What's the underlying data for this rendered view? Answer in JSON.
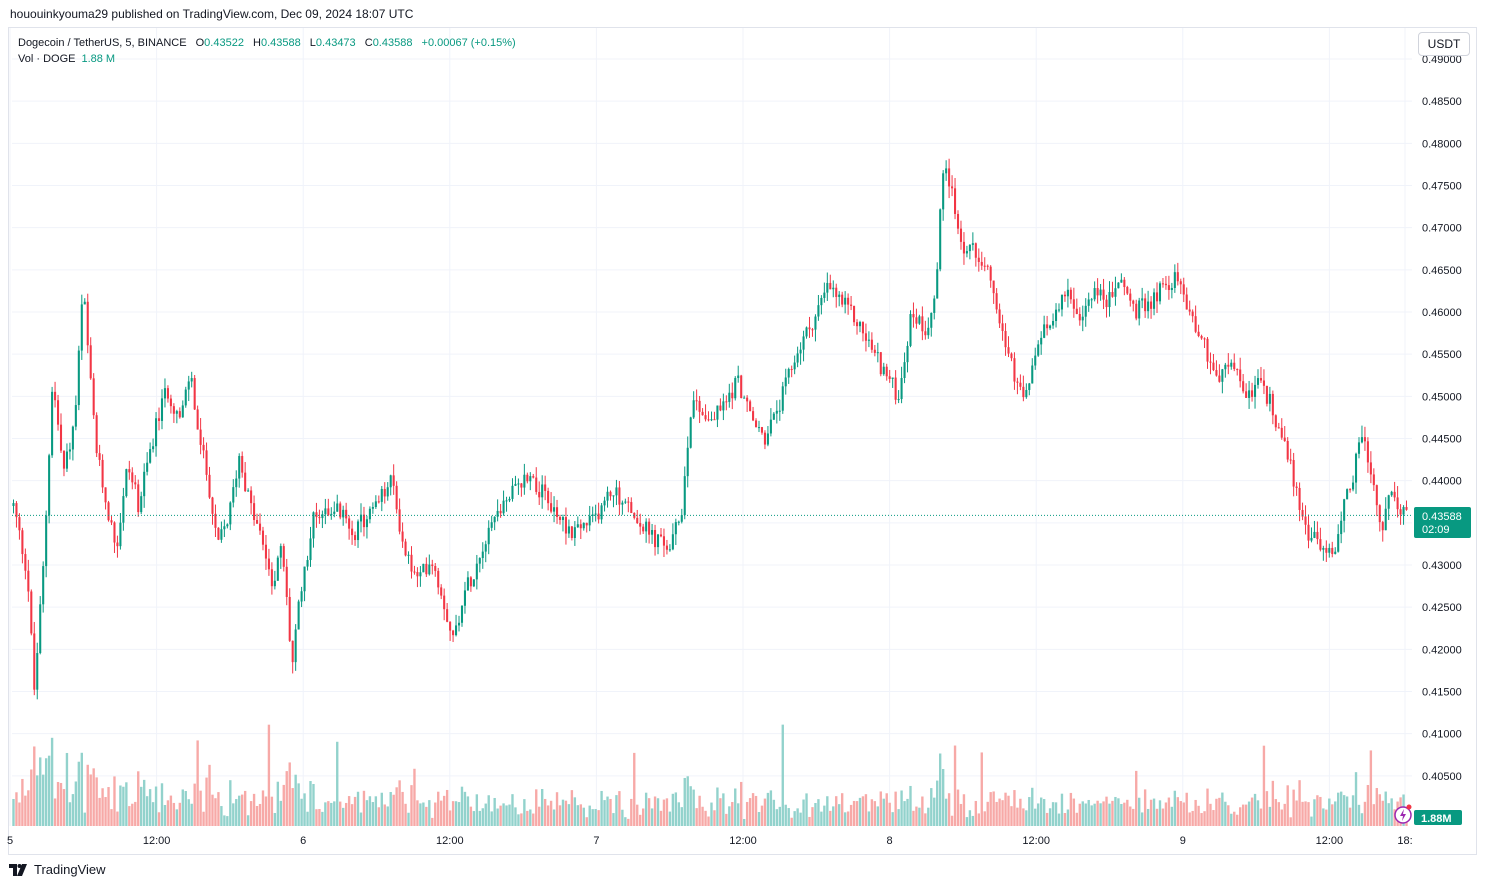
{
  "publisher_line": "hououinkyouma29 published on TradingView.com, Dec 09, 2024 18:07 UTC",
  "legend": {
    "symbol": "Dogecoin / TetherUS, 5, BINANCE",
    "open_key": "O",
    "open": "0.43522",
    "high_key": "H",
    "high": "0.43588",
    "low_key": "L",
    "low": "0.43473",
    "close_key": "C",
    "close": "0.43588",
    "change": "+0.00067 (+0.15%)",
    "vol_label": "Vol · DOGE",
    "vol_value": "1.88 M"
  },
  "currency_button": "USDT",
  "last_price_label": "0.43588",
  "countdown_label": "02:09",
  "volume_label": "1.88M",
  "logo_text": "TradingView",
  "colors": {
    "up": "#089981",
    "down": "#f23645",
    "up_vol": "#92d2cc",
    "down_vol": "#f7a9a7",
    "grid": "#f0f3fa",
    "price_line": "#089981"
  },
  "chart_data": {
    "type": "candlestick",
    "title": "Dogecoin / TetherUS, 5, BINANCE",
    "ylim": [
      0.4,
      0.49
    ],
    "y_ticks": [
      "0.49000",
      "0.48500",
      "0.48000",
      "0.47500",
      "0.47000",
      "0.46500",
      "0.46000",
      "0.45500",
      "0.45000",
      "0.44500",
      "0.44000",
      "0.43500",
      "0.43000",
      "0.42500",
      "0.42000",
      "0.41500",
      "0.41000",
      "0.40500"
    ],
    "x_ticks": [
      "5",
      "12:00",
      "6",
      "12:00",
      "7",
      "12:00",
      "8",
      "12:00",
      "9",
      "12:00",
      "18:"
    ],
    "price_path": [
      [
        0.0,
        0.437
      ],
      [
        0.01,
        0.429
      ],
      [
        0.015,
        0.415
      ],
      [
        0.022,
        0.431
      ],
      [
        0.028,
        0.452
      ],
      [
        0.036,
        0.441
      ],
      [
        0.044,
        0.447
      ],
      [
        0.05,
        0.463
      ],
      [
        0.055,
        0.452
      ],
      [
        0.06,
        0.443
      ],
      [
        0.067,
        0.437
      ],
      [
        0.074,
        0.432
      ],
      [
        0.082,
        0.442
      ],
      [
        0.09,
        0.437
      ],
      [
        0.1,
        0.445
      ],
      [
        0.11,
        0.451
      ],
      [
        0.12,
        0.447
      ],
      [
        0.127,
        0.453
      ],
      [
        0.133,
        0.445
      ],
      [
        0.14,
        0.44
      ],
      [
        0.146,
        0.432
      ],
      [
        0.155,
        0.436
      ],
      [
        0.162,
        0.443
      ],
      [
        0.17,
        0.437
      ],
      [
        0.178,
        0.433
      ],
      [
        0.186,
        0.428
      ],
      [
        0.193,
        0.432
      ],
      [
        0.2,
        0.418
      ],
      [
        0.207,
        0.428
      ],
      [
        0.216,
        0.436
      ],
      [
        0.23,
        0.437
      ],
      [
        0.245,
        0.434
      ],
      [
        0.26,
        0.437
      ],
      [
        0.272,
        0.44
      ],
      [
        0.28,
        0.432
      ],
      [
        0.29,
        0.428
      ],
      [
        0.3,
        0.431
      ],
      [
        0.31,
        0.425
      ],
      [
        0.316,
        0.421
      ],
      [
        0.322,
        0.426
      ],
      [
        0.332,
        0.43
      ],
      [
        0.342,
        0.435
      ],
      [
        0.355,
        0.438
      ],
      [
        0.37,
        0.441
      ],
      [
        0.385,
        0.437
      ],
      [
        0.4,
        0.434
      ],
      [
        0.415,
        0.435
      ],
      [
        0.43,
        0.439
      ],
      [
        0.445,
        0.436
      ],
      [
        0.46,
        0.433
      ],
      [
        0.472,
        0.432
      ],
      [
        0.48,
        0.437
      ],
      [
        0.487,
        0.45
      ],
      [
        0.5,
        0.447
      ],
      [
        0.51,
        0.449
      ],
      [
        0.52,
        0.452
      ],
      [
        0.53,
        0.447
      ],
      [
        0.54,
        0.445
      ],
      [
        0.55,
        0.449
      ],
      [
        0.562,
        0.455
      ],
      [
        0.574,
        0.459
      ],
      [
        0.585,
        0.463
      ],
      [
        0.595,
        0.461
      ],
      [
        0.605,
        0.459
      ],
      [
        0.615,
        0.456
      ],
      [
        0.625,
        0.453
      ],
      [
        0.635,
        0.45
      ],
      [
        0.645,
        0.46
      ],
      [
        0.655,
        0.458
      ],
      [
        0.662,
        0.462
      ],
      [
        0.668,
        0.479
      ],
      [
        0.674,
        0.474
      ],
      [
        0.68,
        0.468
      ],
      [
        0.69,
        0.467
      ],
      [
        0.7,
        0.466
      ],
      [
        0.71,
        0.458
      ],
      [
        0.72,
        0.451
      ],
      [
        0.728,
        0.45
      ],
      [
        0.735,
        0.456
      ],
      [
        0.745,
        0.459
      ],
      [
        0.755,
        0.463
      ],
      [
        0.765,
        0.458
      ],
      [
        0.775,
        0.463
      ],
      [
        0.785,
        0.461
      ],
      [
        0.795,
        0.464
      ],
      [
        0.805,
        0.46
      ],
      [
        0.815,
        0.461
      ],
      [
        0.825,
        0.463
      ],
      [
        0.835,
        0.464
      ],
      [
        0.845,
        0.46
      ],
      [
        0.855,
        0.456
      ],
      [
        0.865,
        0.452
      ],
      [
        0.875,
        0.454
      ],
      [
        0.885,
        0.45
      ],
      [
        0.895,
        0.452
      ],
      [
        0.905,
        0.448
      ],
      [
        0.915,
        0.443
      ],
      [
        0.922,
        0.438
      ],
      [
        0.928,
        0.434
      ],
      [
        0.936,
        0.433
      ],
      [
        0.944,
        0.431
      ],
      [
        0.95,
        0.433
      ],
      [
        0.955,
        0.437
      ],
      [
        0.962,
        0.441
      ],
      [
        0.968,
        0.446
      ],
      [
        0.975,
        0.44
      ],
      [
        0.982,
        0.434
      ],
      [
        0.988,
        0.438
      ],
      [
        0.995,
        0.437
      ],
      [
        1.0,
        0.4359
      ]
    ]
  }
}
